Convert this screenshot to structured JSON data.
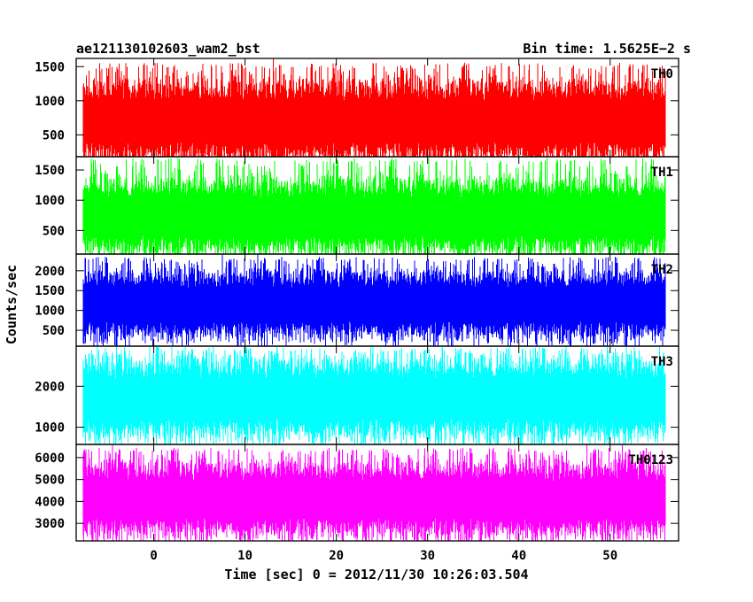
{
  "chart_data": {
    "type": "line",
    "title_left": "ae121130102603_wam2_bst",
    "title_right": "Bin time: 1.5625E−2 s",
    "xlabel": "Time [sec] 0 = 2012/11/30 10:26:03.504",
    "ylabel": "Counts/sec",
    "x_range": [
      -8.5,
      57.5
    ],
    "x_data_range": [
      -7.8,
      56.1
    ],
    "bin_time_s": 0.015625,
    "x_ticks": [
      0,
      10,
      20,
      30,
      40,
      50
    ],
    "grid": false,
    "panels": [
      {
        "name": "TH0",
        "color": "#ff0000",
        "ylim": [
          180,
          1620
        ],
        "y_ticks": [
          500,
          1000,
          1500
        ],
        "mean": 700,
        "typical_range": [
          250,
          1350
        ],
        "peak_max": 1560
      },
      {
        "name": "TH1",
        "color": "#00ff00",
        "ylim": [
          110,
          1720
        ],
        "y_ticks": [
          500,
          1000,
          1500
        ],
        "mean": 730,
        "typical_range": [
          250,
          1400
        ],
        "peak_max": 1700
      },
      {
        "name": "TH2",
        "color": "#0000ff",
        "ylim": [
          100,
          2420
        ],
        "y_ticks": [
          500,
          1000,
          1500,
          2000
        ],
        "mean": 1150,
        "typical_range": [
          450,
          2000
        ],
        "peak_max": 2350
      },
      {
        "name": "TH3",
        "color": "#00ffff",
        "ylim": [
          580,
          2980
        ],
        "y_ticks": [
          1000,
          2000
        ],
        "mean": 1700,
        "typical_range": [
          900,
          2700
        ],
        "peak_max": 2950
      },
      {
        "name": "TH0123",
        "color": "#ff00ff",
        "ylim": [
          2200,
          6600
        ],
        "y_ticks": [
          3000,
          4000,
          5000,
          6000
        ],
        "mean": 4100,
        "typical_range": [
          2700,
          5800
        ],
        "peak_max": 6450
      }
    ]
  }
}
